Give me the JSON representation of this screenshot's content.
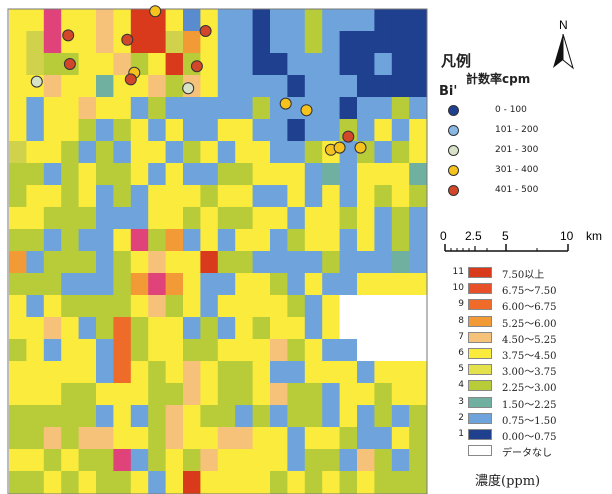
{
  "map": {
    "legend_title": "凡例",
    "legend_subtitle": "計数率cpm",
    "element_label": "Bi'",
    "north_label": "N",
    "scale": {
      "labels": [
        "0",
        "2.5",
        "5",
        "10"
      ],
      "unit": "km"
    },
    "point_classes": [
      {
        "label": "0 - 100",
        "color": "#1f3f8f"
      },
      {
        "label": "101 - 200",
        "color": "#8ab8e6"
      },
      {
        "label": "201 - 300",
        "color": "#d8e2c6"
      },
      {
        "label": "301 - 400",
        "color": "#f5c21e"
      },
      {
        "label": "401 - 500",
        "color": "#d2462a"
      }
    ],
    "concentration_classes": [
      {
        "class": "11",
        "label": "7.50以上",
        "color": "#d93a1c"
      },
      {
        "class": "10",
        "label": "6.75～7.50",
        "color": "#e8502a"
      },
      {
        "class": "9",
        "label": "6.00～6.75",
        "color": "#ee6b2a"
      },
      {
        "class": "8",
        "label": "5.25～6.00",
        "color": "#f29a36"
      },
      {
        "class": "7",
        "label": "4.50～5.25",
        "color": "#f6c27a"
      },
      {
        "class": "6",
        "label": "3.75～4.50",
        "color": "#fbeb3c"
      },
      {
        "class": "5",
        "label": "3.00～3.75",
        "color": "#e4e24c"
      },
      {
        "class": "4",
        "label": "2.25～3.00",
        "color": "#b8cc3a"
      },
      {
        "class": "3",
        "label": "1.50～2.25",
        "color": "#6fb0a0"
      },
      {
        "class": "2",
        "label": "0.75～1.50",
        "color": "#6fa3dc"
      },
      {
        "class": "1",
        "label": "0.00～0.75",
        "color": "#1f3f8f"
      },
      {
        "class": "",
        "label": "データなし",
        "color": "#ffffff"
      }
    ],
    "unit_label": "濃度(ppm)",
    "grid": [
      "66m77y6YY6n6uu2uu5uuu222",
      "6Zm66y6YYZ86uu2uu5u22222",
      "6Z5566y56Y56uu22uuu22u22",
      "66y66466y5y6uuuu2uuu2222",
      "6u66y66u5uuuuu5uuuu2uu5u",
      "6u665u56u6uu66uu2uu5u6u6",
      "Z665u5u66u56u66uu56u5u56",
      "55u56556u6uu55666u4u6664",
      "56656u5u666566uu6u6u6565",
      "66555uuu66565566u6656u5u",
      "55u5uu6m58u6u66u566u6u5u",
      "8u555u56y66Y55uuuu5uuu4u",
      "555uuu58m86uu665u6uu6666",
      "6u655556y56u66665u6u4444",
      "66y6u59566u5u6566u6u5555",
      "56u66u956655666y56uu6466",
      "66666u9656y6556uu666u666",
      "6665566655y6556y55u66566",
      "55555u6u5y655u5u55u6u5u5",
      "55y5yy665y66yy66u665uu65",
      "665655mu565y6666u55uy5u5",
      "55656556u6Y6666565656555"
    ],
    "grid_codes": {
      "2": "#1f3f8f",
      "u": "#6fa3dc",
      "n": "#5a8bcf",
      "4": "#6fb0a0",
      "5": "#b8cc3a",
      "Z": "#cfd24a",
      "6": "#fbeb3c",
      "y": "#f6c27a",
      "8": "#f29a36",
      "9": "#ee6b2a",
      "Y": "#d93a1c",
      "m": "#e0427a",
      "w": "#ffffff"
    },
    "nodata_cells": [
      [
        13,
        19
      ],
      [
        13,
        20
      ],
      [
        13,
        21
      ],
      [
        13,
        22
      ],
      [
        13,
        23
      ],
      [
        14,
        19
      ],
      [
        14,
        20
      ],
      [
        14,
        21
      ],
      [
        14,
        22
      ],
      [
        14,
        23
      ],
      [
        15,
        20
      ],
      [
        15,
        21
      ],
      [
        15,
        22
      ],
      [
        15,
        23
      ]
    ],
    "points": [
      {
        "col": 8.4,
        "row": 0.1,
        "class": "301 - 400"
      },
      {
        "col": 3.4,
        "row": 1.2,
        "class": "401 - 500"
      },
      {
        "col": 6.8,
        "row": 1.4,
        "class": "401 - 500"
      },
      {
        "col": 11.3,
        "row": 1.0,
        "class": "401 - 500"
      },
      {
        "col": 3.5,
        "row": 2.5,
        "class": "401 - 500"
      },
      {
        "col": 7.2,
        "row": 2.9,
        "class": "301 - 400"
      },
      {
        "col": 7.0,
        "row": 3.2,
        "class": "401 - 500"
      },
      {
        "col": 10.8,
        "row": 2.6,
        "class": "401 - 500"
      },
      {
        "col": 1.6,
        "row": 3.3,
        "class": "201 - 300"
      },
      {
        "col": 10.3,
        "row": 3.6,
        "class": "201 - 300"
      },
      {
        "col": 15.9,
        "row": 4.3,
        "class": "301 - 400"
      },
      {
        "col": 17.1,
        "row": 4.6,
        "class": "301 - 400"
      },
      {
        "col": 19.5,
        "row": 5.8,
        "class": "401 - 500"
      },
      {
        "col": 18.5,
        "row": 6.4,
        "class": "301 - 400"
      },
      {
        "col": 19.0,
        "row": 6.3,
        "class": "301 - 400"
      },
      {
        "col": 20.2,
        "row": 6.3,
        "class": "301 - 400"
      }
    ]
  }
}
